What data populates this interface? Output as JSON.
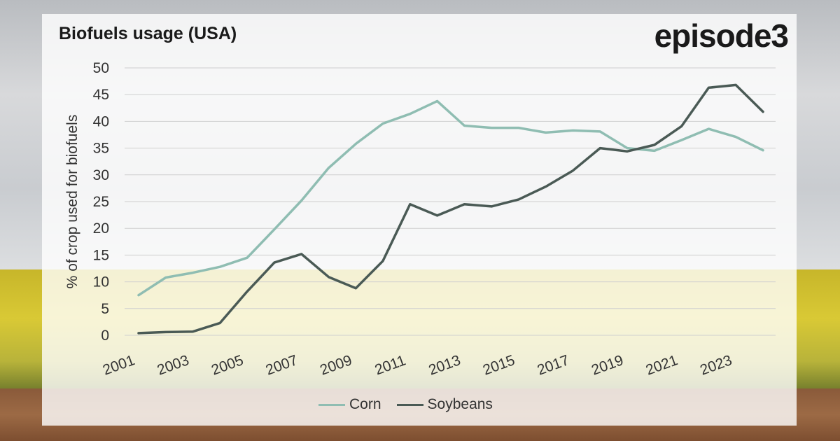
{
  "header": {
    "title": "Biofuels usage (USA)",
    "brand": "episode3"
  },
  "colors": {
    "corn": "#8fbdb2",
    "soybeans": "#4a5a55",
    "grid": "#cfcfcf",
    "axis_text": "#333333"
  },
  "chart_data": {
    "type": "line",
    "title": "",
    "xlabel": "",
    "ylabel": "% of crop used for biofuels",
    "ylim": [
      0,
      50
    ],
    "yticks": [
      0,
      5,
      10,
      15,
      20,
      25,
      30,
      35,
      40,
      45,
      50
    ],
    "x": [
      2001,
      2002,
      2003,
      2004,
      2005,
      2006,
      2007,
      2008,
      2009,
      2010,
      2011,
      2012,
      2013,
      2014,
      2015,
      2016,
      2017,
      2018,
      2019,
      2020,
      2021,
      2022,
      2023,
      2024
    ],
    "xtick_labels": [
      "2001",
      "2003",
      "2005",
      "2007",
      "2009",
      "2011",
      "2013",
      "2015",
      "2017",
      "2019",
      "2021",
      "2023"
    ],
    "grid": true,
    "legend_position": "bottom",
    "series": [
      {
        "name": "Corn",
        "values": [
          7.5,
          10.8,
          11.7,
          12.8,
          14.5,
          19.8,
          25.2,
          31.3,
          35.8,
          39.6,
          41.4,
          43.8,
          39.2,
          38.8,
          38.8,
          37.9,
          38.3,
          38.1,
          35.0,
          34.5,
          36.5,
          38.6,
          37.1,
          34.6
        ]
      },
      {
        "name": "Soybeans",
        "values": [
          0.4,
          0.6,
          0.7,
          2.3,
          8.2,
          13.6,
          15.2,
          10.9,
          8.8,
          13.9,
          24.5,
          22.4,
          24.5,
          24.1,
          25.4,
          27.8,
          30.8,
          35.0,
          34.4,
          35.6,
          39.1,
          46.3,
          46.8,
          41.8
        ]
      }
    ]
  }
}
